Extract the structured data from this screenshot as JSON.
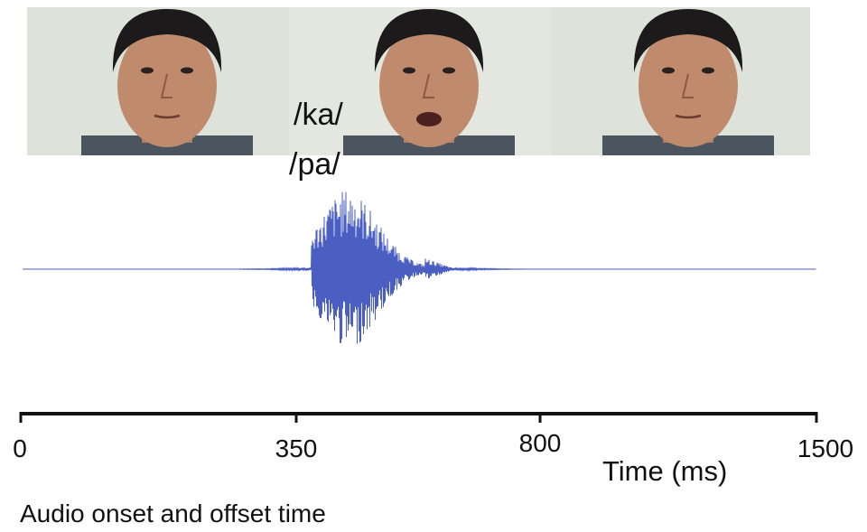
{
  "figure": {
    "stimulus_labels": [
      "/ka/",
      "/pa/"
    ],
    "timeline": {
      "ticks": [
        "0",
        "350",
        "800",
        "1500"
      ],
      "axis_label": "Time (ms)"
    },
    "caption": "Audio onset and offset time"
  }
}
